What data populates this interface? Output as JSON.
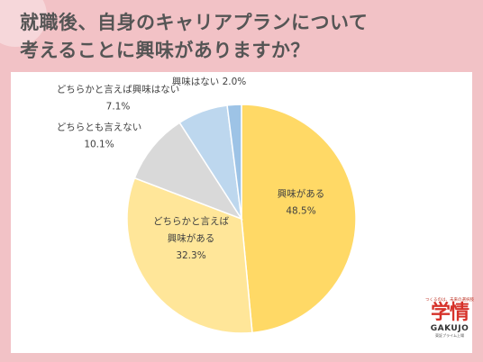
{
  "title_line1": "就職後、自身のキャリアプランについて",
  "title_line2": "考えることに興味がありますか？",
  "chart_data": {
    "type": "pie",
    "slices": [
      {
        "label_lines": [
          "興味がある"
        ],
        "value": 48.5,
        "value_text": "48.5%",
        "color": "#ffd966"
      },
      {
        "label_lines": [
          "どちらかと言えば",
          "興味がある"
        ],
        "value": 32.3,
        "value_text": "32.3%",
        "color": "#ffe699"
      },
      {
        "label_lines": [
          "どちらとも言えない"
        ],
        "value": 10.1,
        "value_text": "10.1%",
        "color": "#d9d9d9"
      },
      {
        "label_lines": [
          "どちらかと言えば興味はない"
        ],
        "value": 7.1,
        "value_text": "7.1%",
        "color": "#bdd7ee"
      },
      {
        "label_lines": [
          "興味はない"
        ],
        "value": 2.0,
        "value_text": "2.0%",
        "color": "#9dc3e6"
      }
    ]
  },
  "logo": {
    "tagline": "つくるのは、未来の選択肢",
    "kanji": "学情",
    "en": "GAKUJO",
    "sub": "東証プライム上場"
  }
}
